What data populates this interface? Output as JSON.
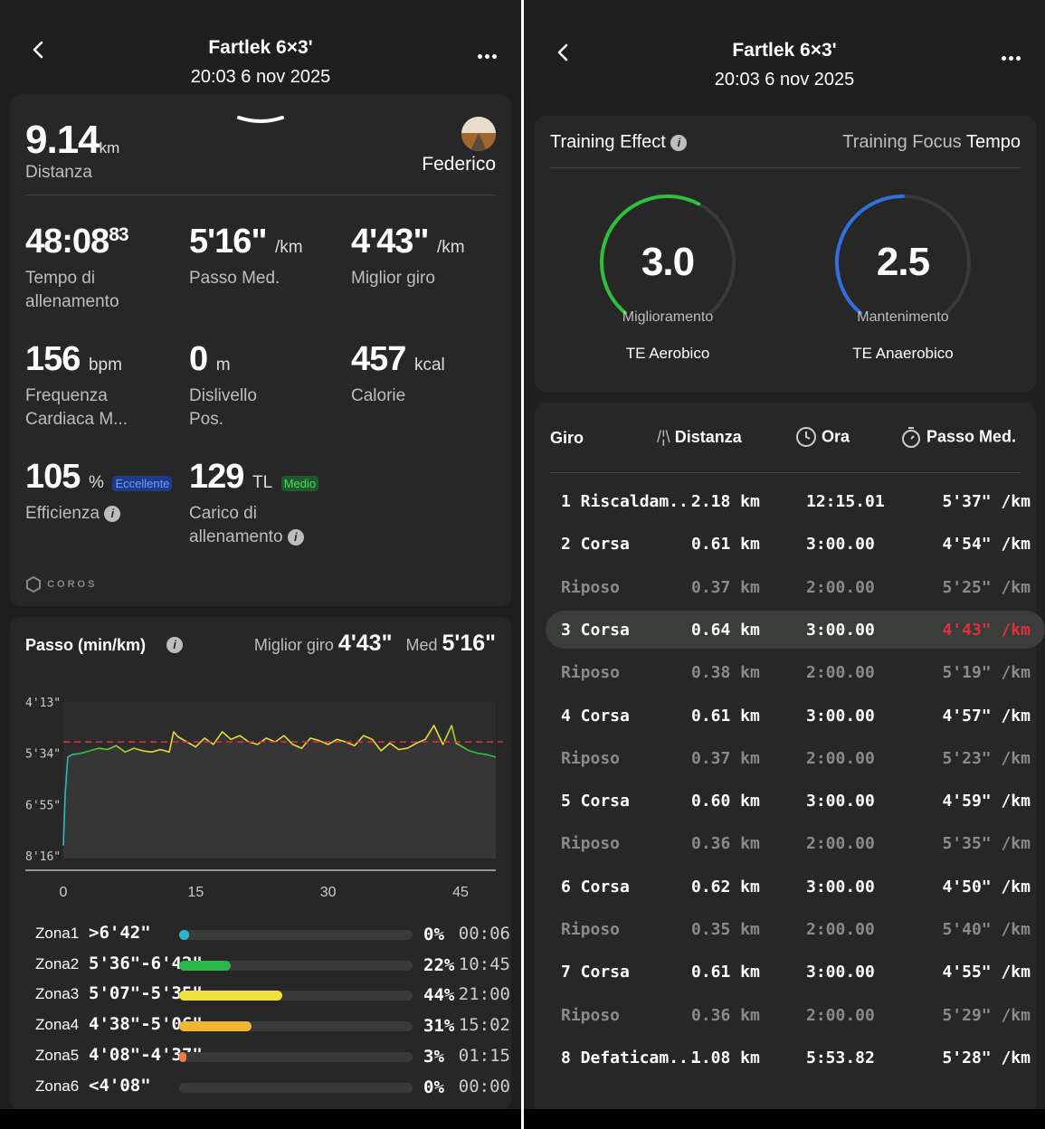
{
  "left": {
    "header": {
      "title": "Fartlek 6×3'",
      "datetime": "20:03 6 nov 2025"
    },
    "summary": {
      "distance_value": "9.14",
      "distance_unit": "km",
      "distance_label": "Distanza",
      "athlete": "Federico"
    },
    "metrics": {
      "time_main": "48:08",
      "time_frac": "83",
      "time_label_1": "Tempo di",
      "time_label_2": "allenamento",
      "pace_value": "5'16\"",
      "pace_unit": "/km",
      "pace_label": "Passo Med.",
      "best_value": "4'43\"",
      "best_unit": "/km",
      "best_label": "Miglior giro",
      "hr_value": "156",
      "hr_unit": "bpm",
      "hr_label_1": "Frequenza",
      "hr_label_2": "Cardiaca M...",
      "elev_value": "0",
      "elev_unit": "m",
      "elev_label_1": "Dislivello",
      "elev_label_2": "Pos.",
      "cal_value": "457",
      "cal_unit": "kcal",
      "cal_label": "Calorie",
      "eff_value": "105",
      "eff_unit": "%",
      "eff_badge": "Eccellente",
      "eff_label": "Efficienza",
      "load_value": "129",
      "load_unit": "TL",
      "load_badge": "Medio",
      "load_label_1": "Carico di",
      "load_label_2": "allenamento"
    },
    "brand": "COROS",
    "pace_chart": {
      "title": "Passo (min/km)",
      "best_label": "Miglior giro",
      "best_value": "4'43\"",
      "avg_label": "Med",
      "avg_value": "5'16\"",
      "colors": {
        "line": "#e8d93a",
        "start": "#2fb5c9",
        "end": "#2fbf3a",
        "avg_line": "#e0303a"
      }
    },
    "zones": [
      {
        "name": "Zona1",
        "range": ">6'42\"",
        "percent_text": "0%",
        "time": "00:06",
        "fraction": 0.0,
        "color": "#2fb5c9"
      },
      {
        "name": "Zona2",
        "range": "5'36\"-6'42\"",
        "percent_text": "22%",
        "time": "10:45",
        "fraction": 0.22,
        "color": "#2bb84a"
      },
      {
        "name": "Zona3",
        "range": "5'07\"-5'35\"",
        "percent_text": "44%",
        "time": "21:00",
        "fraction": 0.44,
        "color": "#f0e040"
      },
      {
        "name": "Zona4",
        "range": "4'38\"-5'06\"",
        "percent_text": "31%",
        "time": "15:02",
        "fraction": 0.31,
        "color": "#f2b534"
      },
      {
        "name": "Zona5",
        "range": "4'08\"-4'37\"",
        "percent_text": "3%",
        "time": "01:15",
        "fraction": 0.03,
        "color": "#f07a4a"
      },
      {
        "name": "Zona6",
        "range": "<4'08\"",
        "percent_text": "0%",
        "time": "00:00",
        "fraction": 0.0,
        "color": "#e04040"
      }
    ]
  },
  "chart_data": {
    "type": "line",
    "title": "Passo (min/km)",
    "xlabel": "",
    "ylabel": "",
    "x_ticks": [
      "0",
      "15",
      "30",
      "45"
    ],
    "y_ticks": [
      "4'13\"",
      "5'34\"",
      "6'55\"",
      "8'16\""
    ],
    "xlim": [
      0,
      49
    ],
    "ylim_sec_per_km": [
      253,
      496
    ],
    "y_inverted": true,
    "average_sec_per_km": 316,
    "grid": false,
    "series": [
      {
        "x": [
          0,
          0.2,
          0.5,
          1,
          2,
          3,
          4,
          5,
          6,
          7,
          8,
          9,
          10,
          11,
          12,
          12.5,
          13,
          14,
          15,
          16,
          17,
          18,
          19,
          20,
          21,
          22,
          23,
          24,
          25,
          26,
          27,
          28,
          29,
          30,
          31,
          32,
          33,
          34,
          35,
          36,
          37,
          38,
          39,
          40,
          41,
          42,
          43,
          44,
          44.5,
          45,
          46,
          47,
          48,
          49
        ],
        "values": [
          480,
          400,
          340,
          336,
          334,
          330,
          326,
          328,
          322,
          332,
          326,
          330,
          332,
          328,
          332,
          300,
          308,
          316,
          324,
          310,
          320,
          300,
          312,
          306,
          316,
          320,
          310,
          316,
          306,
          320,
          326,
          310,
          314,
          320,
          312,
          316,
          322,
          306,
          312,
          330,
          318,
          328,
          326,
          318,
          312,
          290,
          320,
          290,
          318,
          322,
          330,
          334,
          336,
          340
        ]
      }
    ]
  },
  "right": {
    "header": {
      "title": "Fartlek 6×3'",
      "datetime": "20:03 6 nov 2025"
    },
    "te": {
      "title": "Training Effect",
      "focus_label": "Training Focus",
      "focus_value": "Tempo",
      "aerobic": {
        "value": "3.0",
        "fraction": 0.6,
        "status": "Miglioramento",
        "label": "TE Aerobico",
        "color": "#2fbf3a"
      },
      "anaerobic": {
        "value": "2.5",
        "fraction": 0.5,
        "status": "Mantenimento",
        "label": "TE Anaerobico",
        "color": "#2f6fe0"
      }
    },
    "laps": {
      "headers": {
        "lap": "Giro",
        "distance": "Distanza",
        "time": "Ora",
        "pace": "Passo Med."
      },
      "rows": [
        {
          "name": "1 Riscaldam...",
          "distance": "2.18 km",
          "time": "12:15.01",
          "pace": "5'37\" /km",
          "type": "work"
        },
        {
          "name": "2 Corsa",
          "distance": "0.61 km",
          "time": "3:00.00",
          "pace": "4'54\" /km",
          "type": "work"
        },
        {
          "name": "Riposo",
          "distance": "0.37 km",
          "time": "2:00.00",
          "pace": "5'25\" /km",
          "type": "rest"
        },
        {
          "name": "3 Corsa",
          "distance": "0.64 km",
          "time": "3:00.00",
          "pace": "4'43\" /km",
          "type": "best"
        },
        {
          "name": "Riposo",
          "distance": "0.38 km",
          "time": "2:00.00",
          "pace": "5'19\" /km",
          "type": "rest"
        },
        {
          "name": "4 Corsa",
          "distance": "0.61 km",
          "time": "3:00.00",
          "pace": "4'57\" /km",
          "type": "work"
        },
        {
          "name": "Riposo",
          "distance": "0.37 km",
          "time": "2:00.00",
          "pace": "5'23\" /km",
          "type": "rest"
        },
        {
          "name": "5 Corsa",
          "distance": "0.60 km",
          "time": "3:00.00",
          "pace": "4'59\" /km",
          "type": "work"
        },
        {
          "name": "Riposo",
          "distance": "0.36 km",
          "time": "2:00.00",
          "pace": "5'35\" /km",
          "type": "rest"
        },
        {
          "name": "6 Corsa",
          "distance": "0.62 km",
          "time": "3:00.00",
          "pace": "4'50\" /km",
          "type": "work"
        },
        {
          "name": "Riposo",
          "distance": "0.35 km",
          "time": "2:00.00",
          "pace": "5'40\" /km",
          "type": "rest"
        },
        {
          "name": "7 Corsa",
          "distance": "0.61 km",
          "time": "3:00.00",
          "pace": "4'55\" /km",
          "type": "work"
        },
        {
          "name": "Riposo",
          "distance": "0.36 km",
          "time": "2:00.00",
          "pace": "5'29\" /km",
          "type": "rest"
        },
        {
          "name": "8 Defaticam...",
          "distance": "1.08 km",
          "time": "5:53.82",
          "pace": "5'28\" /km",
          "type": "work"
        }
      ],
      "best_color": "#e0303a"
    }
  }
}
